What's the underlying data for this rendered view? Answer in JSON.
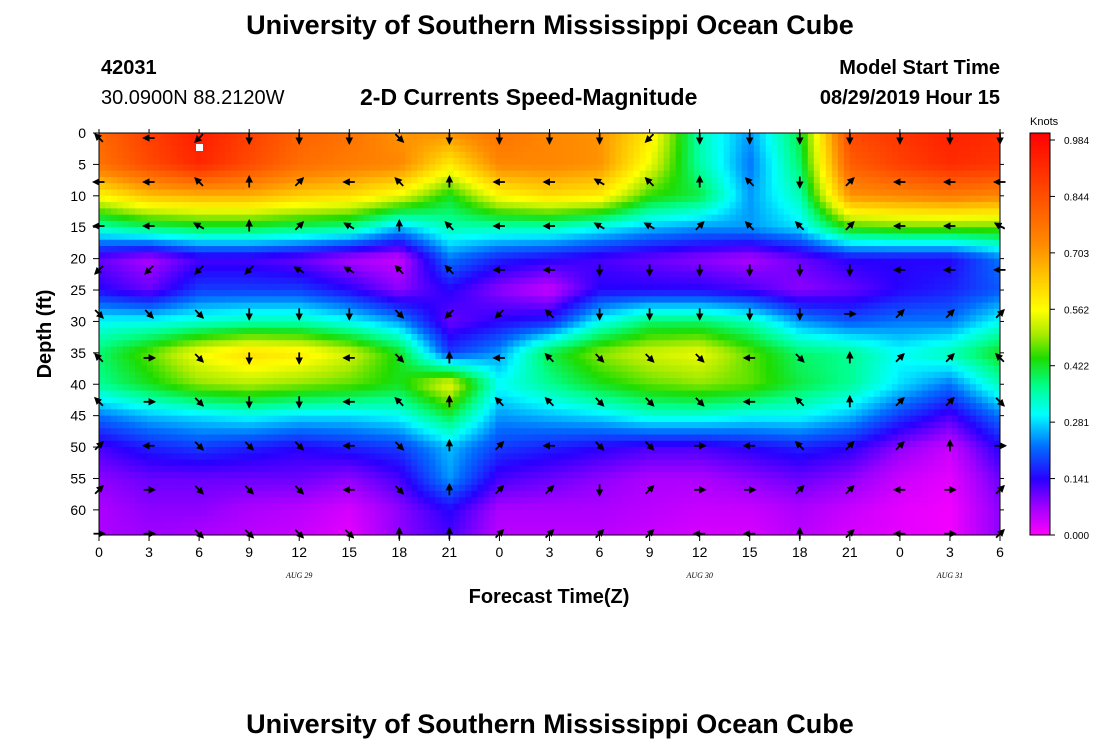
{
  "page": {
    "title": "University of Southern Mississippi Ocean Cube",
    "footer_title": "University of Southern Mississippi Ocean Cube"
  },
  "header": {
    "station_id": "42031",
    "coordinates": "30.0900N 88.2120W",
    "plot_title": "2-D Currents Speed-Magnitude",
    "model_label": "Model Start Time",
    "model_time": "08/29/2019 Hour 15"
  },
  "chart_data": {
    "type": "heatmap",
    "title": "2-D Currents Speed-Magnitude",
    "xlabel": "Forecast Time(Z)",
    "ylabel": "Depth (ft)",
    "x_tick_labels": [
      "0",
      "3",
      "6",
      "9",
      "12",
      "15",
      "18",
      "21",
      "0",
      "3",
      "6",
      "9",
      "12",
      "15",
      "18",
      "21",
      "0",
      "3",
      "6"
    ],
    "x_hours": [
      0,
      3,
      6,
      9,
      12,
      15,
      18,
      21,
      24,
      27,
      30,
      33,
      36,
      39,
      42,
      45,
      48,
      51,
      54
    ],
    "xlim": [
      0,
      54
    ],
    "date_labels": [
      {
        "label": "AUG 29",
        "hour": 12
      },
      {
        "label": "AUG 30",
        "hour": 36
      },
      {
        "label": "AUG 31",
        "hour": 51
      }
    ],
    "y_ticks": [
      0,
      5,
      10,
      15,
      20,
      25,
      30,
      35,
      40,
      45,
      50,
      55,
      60
    ],
    "ylim": [
      0,
      64
    ],
    "colorbar": {
      "unit": "Knots",
      "ticks": [
        "0.984",
        "0.844",
        "0.703",
        "0.562",
        "0.422",
        "0.281",
        "0.141",
        "0.000"
      ],
      "range": [
        0,
        0.984
      ]
    },
    "value_range": [
      0,
      0.984
    ],
    "speed_grid": {
      "note": "approximate speed (knots), rows = depth in ft, cols = forecast hour",
      "hours": [
        0,
        3,
        6,
        9,
        12,
        15,
        18,
        21,
        24,
        27,
        30,
        33,
        36,
        39,
        42,
        45,
        48,
        51,
        54
      ],
      "depths": [
        0,
        5,
        10,
        15,
        20,
        25,
        30,
        35,
        40,
        45,
        50,
        55,
        60,
        64
      ],
      "values": [
        [
          0.78,
          0.86,
          0.93,
          0.86,
          0.79,
          0.76,
          0.7,
          0.7,
          0.76,
          0.72,
          0.7,
          0.58,
          0.34,
          0.24,
          0.4,
          0.84,
          0.88,
          0.92,
          0.9
        ],
        [
          0.76,
          0.84,
          0.91,
          0.84,
          0.77,
          0.74,
          0.72,
          0.58,
          0.72,
          0.72,
          0.7,
          0.54,
          0.35,
          0.22,
          0.38,
          0.8,
          0.86,
          0.9,
          0.88
        ],
        [
          0.56,
          0.64,
          0.66,
          0.66,
          0.62,
          0.6,
          0.54,
          0.42,
          0.56,
          0.6,
          0.58,
          0.44,
          0.4,
          0.24,
          0.34,
          0.7,
          0.72,
          0.74,
          0.72
        ],
        [
          0.34,
          0.38,
          0.4,
          0.4,
          0.38,
          0.36,
          0.26,
          0.34,
          0.34,
          0.34,
          0.3,
          0.26,
          0.24,
          0.24,
          0.28,
          0.44,
          0.46,
          0.46,
          0.46
        ],
        [
          0.1,
          0.06,
          0.12,
          0.12,
          0.1,
          0.06,
          0.04,
          0.22,
          0.16,
          0.14,
          0.12,
          0.1,
          0.08,
          0.06,
          0.1,
          0.14,
          0.14,
          0.14,
          0.22
        ],
        [
          0.14,
          0.1,
          0.18,
          0.18,
          0.18,
          0.14,
          0.08,
          0.14,
          0.08,
          0.04,
          0.14,
          0.14,
          0.14,
          0.12,
          0.08,
          0.1,
          0.14,
          0.16,
          0.2
        ],
        [
          0.3,
          0.3,
          0.32,
          0.34,
          0.34,
          0.3,
          0.24,
          0.1,
          0.14,
          0.16,
          0.3,
          0.38,
          0.38,
          0.34,
          0.24,
          0.2,
          0.22,
          0.22,
          0.3
        ],
        [
          0.38,
          0.46,
          0.55,
          0.6,
          0.58,
          0.52,
          0.42,
          0.18,
          0.24,
          0.4,
          0.48,
          0.52,
          0.54,
          0.46,
          0.38,
          0.36,
          0.3,
          0.34,
          0.42
        ],
        [
          0.36,
          0.42,
          0.48,
          0.5,
          0.48,
          0.46,
          0.42,
          0.54,
          0.3,
          0.36,
          0.42,
          0.46,
          0.48,
          0.46,
          0.4,
          0.36,
          0.28,
          0.22,
          0.34
        ],
        [
          0.22,
          0.26,
          0.28,
          0.3,
          0.28,
          0.28,
          0.3,
          0.4,
          0.24,
          0.26,
          0.28,
          0.32,
          0.32,
          0.3,
          0.3,
          0.26,
          0.18,
          0.12,
          0.22
        ],
        [
          0.12,
          0.16,
          0.18,
          0.16,
          0.14,
          0.16,
          0.18,
          0.26,
          0.18,
          0.16,
          0.14,
          0.12,
          0.12,
          0.14,
          0.16,
          0.14,
          0.08,
          0.04,
          0.14
        ],
        [
          0.08,
          0.1,
          0.1,
          0.1,
          0.1,
          0.08,
          0.12,
          0.24,
          0.12,
          0.1,
          0.08,
          0.06,
          0.06,
          0.08,
          0.1,
          0.08,
          0.04,
          0.02,
          0.1
        ],
        [
          0.06,
          0.08,
          0.08,
          0.06,
          0.05,
          0.03,
          0.08,
          0.14,
          0.06,
          0.06,
          0.06,
          0.05,
          0.04,
          0.04,
          0.06,
          0.04,
          0.02,
          0.01,
          0.08
        ],
        [
          0.06,
          0.07,
          0.06,
          0.05,
          0.04,
          0.02,
          0.08,
          0.12,
          0.05,
          0.05,
          0.05,
          0.04,
          0.03,
          0.03,
          0.05,
          0.03,
          0.02,
          0.01,
          0.08
        ]
      ]
    },
    "vectors": {
      "note": "current direction arrows; direction in compass degrees (0 = north/up), rows = depth, cols = hour",
      "hours": [
        0,
        3,
        6,
        9,
        12,
        15,
        18,
        21,
        24,
        27,
        30,
        33,
        36,
        39,
        42,
        45,
        48,
        51,
        54
      ],
      "depths": [
        0,
        7,
        14,
        21,
        28,
        35,
        42,
        49,
        56,
        63
      ],
      "directions": [
        [
          315,
          270,
          225,
          180,
          180,
          180,
          135,
          180,
          180,
          180,
          180,
          225,
          180,
          180,
          180,
          180,
          180,
          180,
          180
        ],
        [
          270,
          270,
          315,
          0,
          45,
          270,
          315,
          0,
          270,
          270,
          300,
          315,
          0,
          315,
          180,
          45,
          270,
          270,
          270
        ],
        [
          270,
          270,
          300,
          0,
          45,
          300,
          0,
          315,
          270,
          270,
          300,
          300,
          45,
          315,
          315,
          45,
          270,
          270,
          300
        ],
        [
          225,
          225,
          225,
          225,
          300,
          300,
          315,
          315,
          270,
          270,
          180,
          180,
          180,
          180,
          180,
          180,
          270,
          270,
          270
        ],
        [
          135,
          135,
          135,
          180,
          180,
          180,
          135,
          225,
          225,
          315,
          180,
          180,
          180,
          180,
          180,
          90,
          45,
          45,
          45
        ],
        [
          315,
          90,
          135,
          180,
          180,
          270,
          135,
          0,
          270,
          315,
          135,
          135,
          135,
          270,
          135,
          0,
          45,
          45,
          315
        ],
        [
          315,
          90,
          135,
          180,
          180,
          270,
          315,
          0,
          315,
          315,
          135,
          135,
          135,
          270,
          315,
          0,
          45,
          45,
          135
        ],
        [
          45,
          270,
          135,
          135,
          135,
          270,
          135,
          0,
          45,
          270,
          135,
          135,
          90,
          270,
          315,
          45,
          45,
          0,
          90
        ],
        [
          45,
          90,
          135,
          135,
          135,
          270,
          135,
          0,
          45,
          45,
          180,
          45,
          90,
          90,
          45,
          45,
          270,
          90,
          45
        ],
        [
          90,
          90,
          135,
          135,
          135,
          135,
          0,
          0,
          45,
          45,
          45,
          45,
          270,
          270,
          0,
          45,
          270,
          90,
          45
        ]
      ]
    },
    "annotations": [
      "white square marker near hour 6, depth 2 ft"
    ]
  }
}
